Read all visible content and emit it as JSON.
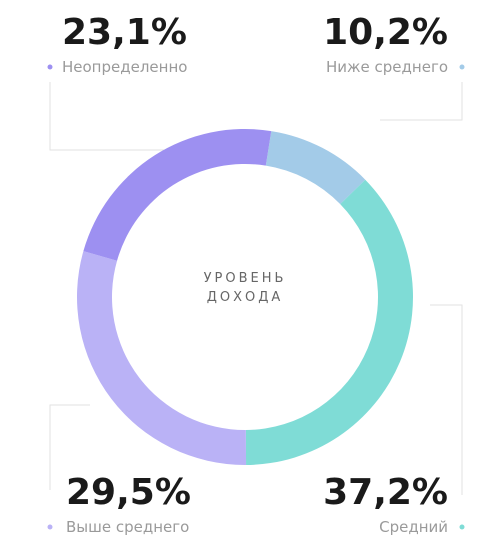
{
  "chart_data": {
    "type": "donut",
    "center_label": [
      "УРОВЕНЬ",
      "ДОХОДА"
    ],
    "categories": [
      "Ниже среднего",
      "Средний",
      "Выше среднего",
      "Неопределенно"
    ],
    "values": [
      10.2,
      37.2,
      29.5,
      23.1
    ],
    "value_labels": [
      "10,2%",
      "37,2%",
      "29,5%",
      "23,1%"
    ],
    "colors": [
      "#a3cbe8",
      "#7fdcd6",
      "#bab2f6",
      "#9d90f1"
    ]
  }
}
